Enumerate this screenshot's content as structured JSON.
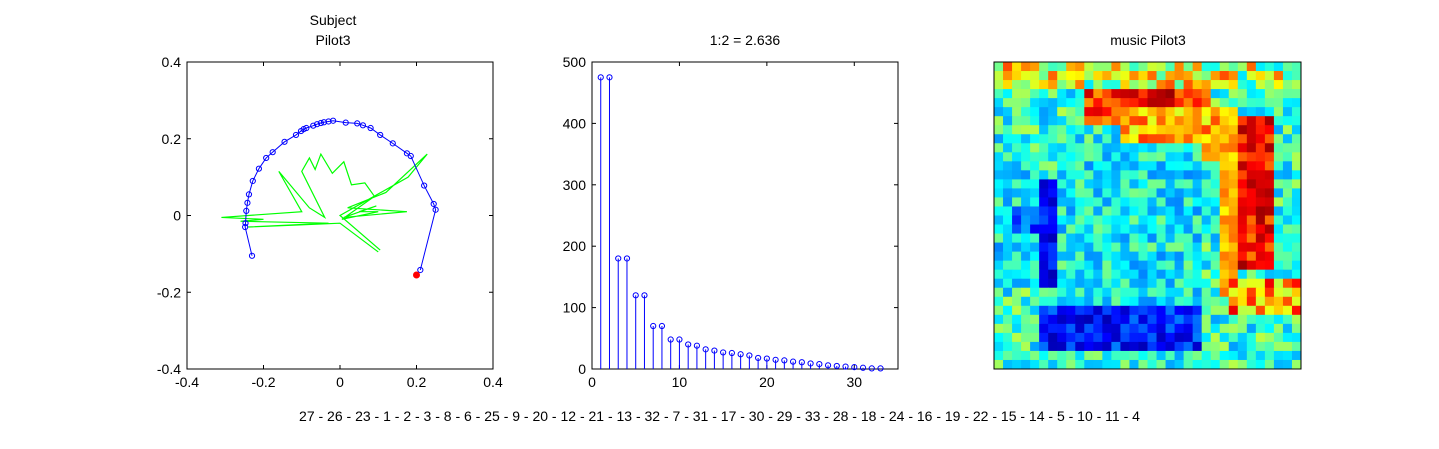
{
  "chart_data": [
    {
      "type": "line",
      "title": [
        "Subject",
        "Pilot3"
      ],
      "xlim": [
        -0.4,
        0.4
      ],
      "ylim": [
        -0.4,
        0.4
      ],
      "xticks": [
        -0.4,
        -0.2,
        0,
        0.2,
        0.4
      ],
      "yticks": [
        -0.4,
        -0.2,
        0,
        0.2,
        0.4
      ],
      "xtick_labels": [
        "-0.4",
        "-0.2",
        "0",
        "0.2",
        "0.4"
      ],
      "ytick_labels": [
        "-0.4",
        "-0.2",
        "0",
        "0.2",
        "0.4"
      ],
      "colors": {
        "blue": "#0000ff",
        "green": "#00ff00",
        "red": "#ff0000"
      },
      "series": [
        {
          "style": "blue-line-circles",
          "points": [
            [
              -0.23,
              -0.105
            ],
            [
              -0.248,
              -0.03
            ],
            [
              -0.247,
              -0.02
            ],
            [
              -0.245,
              0.012
            ],
            [
              -0.242,
              0.033
            ],
            [
              -0.238,
              0.055
            ],
            [
              -0.228,
              0.09
            ],
            [
              -0.212,
              0.122
            ],
            [
              -0.193,
              0.15
            ],
            [
              -0.176,
              0.165
            ],
            [
              -0.145,
              0.192
            ],
            [
              -0.115,
              0.21
            ],
            [
              -0.102,
              0.22
            ],
            [
              -0.095,
              0.225
            ],
            [
              -0.088,
              0.228
            ],
            [
              -0.07,
              0.234
            ],
            [
              -0.06,
              0.238
            ],
            [
              -0.05,
              0.241
            ],
            [
              -0.042,
              0.243
            ],
            [
              -0.03,
              0.245
            ],
            [
              -0.018,
              0.247
            ],
            [
              0.015,
              0.242
            ],
            [
              0.045,
              0.24
            ],
            [
              0.06,
              0.235
            ],
            [
              0.08,
              0.228
            ],
            [
              0.105,
              0.21
            ],
            [
              0.138,
              0.188
            ],
            [
              0.175,
              0.162
            ],
            [
              0.185,
              0.155
            ],
            [
              0.22,
              0.078
            ],
            [
              0.245,
              0.03
            ],
            [
              0.25,
              0.015
            ],
            [
              0.21,
              -0.142
            ]
          ]
        },
        {
          "style": "red-point",
          "points": [
            [
              0.2,
              -0.155
            ]
          ]
        },
        {
          "style": "green-line",
          "points": [
            [
              0.105,
              -0.09
            ],
            [
              0.0,
              0.0
            ],
            [
              0.178,
              0.1
            ],
            [
              0.228,
              0.16
            ],
            [
              0.12,
              0.06
            ],
            [
              0.02,
              0.02
            ],
            [
              0.175,
              0.01
            ],
            [
              0.01,
              -0.005
            ],
            [
              0.095,
              0.025
            ],
            [
              0.05,
              0.01
            ],
            [
              0.1,
              0.01
            ],
            [
              0.005,
              -0.01
            ],
            [
              0.09,
              0.05
            ],
            [
              0.065,
              0.085
            ],
            [
              0.03,
              0.08
            ],
            [
              0.01,
              0.14
            ],
            [
              -0.02,
              0.11
            ],
            [
              -0.05,
              0.16
            ],
            [
              -0.065,
              0.12
            ],
            [
              -0.08,
              0.15
            ],
            [
              -0.1,
              0.115
            ],
            [
              -0.04,
              -0.005
            ],
            [
              -0.08,
              0.02
            ],
            [
              -0.16,
              0.115
            ],
            [
              -0.1,
              0.01
            ],
            [
              -0.31,
              -0.005
            ],
            [
              -0.2,
              -0.01
            ],
            [
              -0.26,
              -0.015
            ],
            [
              -0.03,
              -0.02
            ],
            [
              -0.24,
              -0.03
            ],
            [
              -0.12,
              -0.025
            ],
            [
              0.0,
              -0.02
            ],
            [
              0.1,
              -0.095
            ]
          ]
        }
      ]
    },
    {
      "type": "stem",
      "title": "1:2 = 2.636",
      "xlim": [
        0,
        35
      ],
      "ylim": [
        0,
        500
      ],
      "xticks": [
        0,
        10,
        20,
        30
      ],
      "yticks": [
        0,
        100,
        200,
        300,
        400,
        500
      ],
      "xtick_labels": [
        "0",
        "10",
        "20",
        "30"
      ],
      "ytick_labels": [
        "0",
        "100",
        "200",
        "300",
        "400",
        "500"
      ],
      "color": "#0000ff",
      "x": [
        1,
        2,
        3,
        4,
        5,
        6,
        7,
        8,
        9,
        10,
        11,
        12,
        13,
        14,
        15,
        16,
        17,
        18,
        19,
        20,
        21,
        22,
        23,
        24,
        25,
        26,
        27,
        28,
        29,
        30,
        31,
        32,
        33
      ],
      "values": [
        475,
        475,
        180,
        180,
        120,
        120,
        70,
        70,
        48,
        48,
        40,
        38,
        32,
        30,
        27,
        26,
        24,
        22,
        18,
        17,
        15,
        14,
        12,
        11,
        9,
        8,
        6,
        5,
        4,
        3,
        2,
        1,
        1
      ]
    },
    {
      "type": "heatmap",
      "title": "music Pilot3",
      "colormap": "jet",
      "size": [
        34,
        34
      ],
      "description": "34x34 matrix with mostly cyan/green/yellow values, red band near top rows 3-6, red-orange vertical block on right columns 27-30, dark blue blocks at left middle and bottom rows 28-31"
    }
  ],
  "order_label": "27 - 26 - 23 - 1 - 2 - 3 - 8 - 6 - 25 - 9 - 20 - 12 - 21 - 13 - 32 - 7 - 31 - 17 - 30 - 29 - 33 - 28 - 18 - 24 - 16 - 19 - 22 - 15 - 14 - 5 - 10 - 11 - 4"
}
